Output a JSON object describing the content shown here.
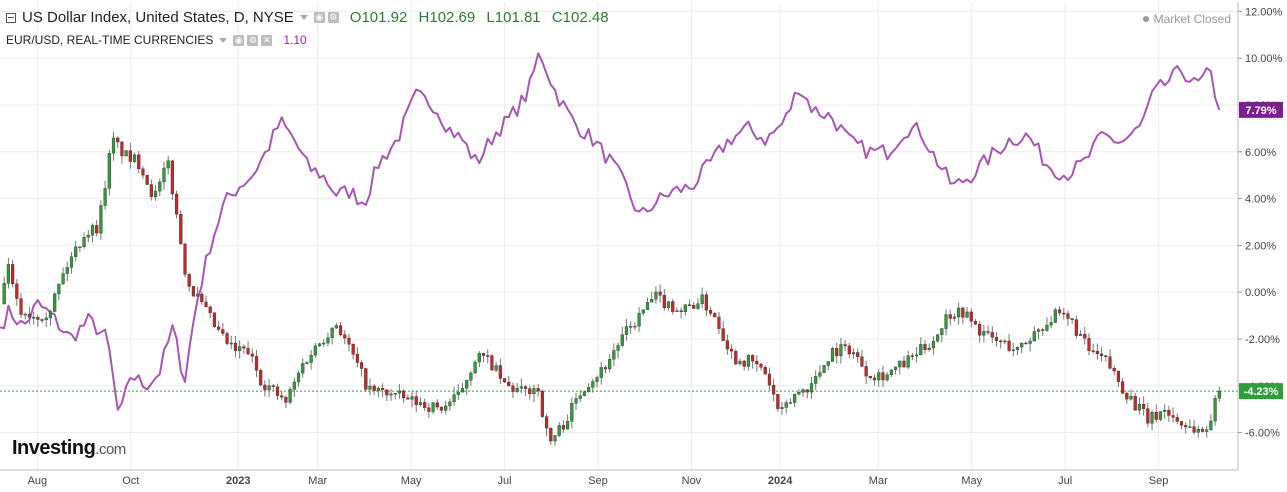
{
  "legend": {
    "primary_title": "US Dollar Index, United States, D, NYSE",
    "open_label": "O",
    "open": "101.92",
    "high_label": "H",
    "high": "102.69",
    "low_label": "L",
    "low": "101.81",
    "close_label": "C",
    "close": "102.48",
    "secondary_title": "EUR/USD, REAL-TIME CURRENCIES",
    "secondary_value": "1.10"
  },
  "market_status": "Market Closed",
  "logo": {
    "main": "Investing",
    "suffix": ".com"
  },
  "colors": {
    "up": "#2e9e3a",
    "down": "#c62828",
    "wick": "#777777",
    "compare_line": "#a855b5",
    "current_price_line": "#2e9e3a",
    "grid": "#ededed",
    "axis_text": "#444444"
  },
  "chart_data": {
    "type": "line",
    "title": "",
    "y_axis": {
      "unit": "%",
      "ticks": [
        "12.00%",
        "10.00%",
        "8.00%",
        "6.00%",
        "4.00%",
        "2.00%",
        "0.00%",
        "-2.00%",
        "-4.00%",
        "-6.00%"
      ],
      "tick_values": [
        12,
        10,
        8,
        6,
        4,
        2,
        0,
        -2,
        -4,
        -6
      ],
      "range": [
        -7.6,
        12.4
      ],
      "grid": true
    },
    "x_axis": {
      "labels": [
        "Aug",
        "Oct",
        "2023",
        "Mar",
        "May",
        "Jul",
        "Sep",
        "Nov",
        "2024",
        "Mar",
        "May",
        "Jul",
        "Sep"
      ],
      "label_positions": [
        0.8,
        2.8,
        5.1,
        6.8,
        8.8,
        10.8,
        12.8,
        14.8,
        16.7,
        18.8,
        20.8,
        22.8,
        24.8
      ],
      "bold_labels": [
        "2023",
        "2024"
      ],
      "range": [
        0,
        26.5
      ],
      "unit": "months since Jul 2022"
    },
    "current_values": {
      "candles": "-4.23%",
      "compare": "7.79%"
    },
    "candle_series": {
      "anchors": [
        [
          0.0,
          -0.5
        ],
        [
          0.15,
          1.2
        ],
        [
          0.4,
          -0.8
        ],
        [
          0.75,
          -1.0
        ],
        [
          1.05,
          -0.8
        ],
        [
          1.4,
          1.0
        ],
        [
          1.8,
          2.5
        ],
        [
          2.1,
          2.8
        ],
        [
          2.4,
          6.5
        ],
        [
          2.7,
          5.8
        ],
        [
          3.0,
          5.5
        ],
        [
          3.3,
          4.0
        ],
        [
          3.6,
          5.5
        ],
        [
          4.0,
          0.5
        ],
        [
          4.3,
          -0.5
        ],
        [
          4.7,
          -1.8
        ],
        [
          5.0,
          -2.5
        ],
        [
          5.3,
          -2.5
        ],
        [
          5.6,
          -3.8
        ],
        [
          5.9,
          -4.3
        ],
        [
          6.1,
          -4.8
        ],
        [
          6.5,
          -3.0
        ],
        [
          6.9,
          -2.0
        ],
        [
          7.2,
          -1.3
        ],
        [
          7.5,
          -2.5
        ],
        [
          7.9,
          -4.2
        ],
        [
          8.3,
          -4.3
        ],
        [
          8.7,
          -4.6
        ],
        [
          9.1,
          -4.8
        ],
        [
          9.4,
          -5.0
        ],
        [
          9.8,
          -4.5
        ],
        [
          10.2,
          -2.7
        ],
        [
          10.5,
          -3.0
        ],
        [
          10.8,
          -4.0
        ],
        [
          11.2,
          -4.3
        ],
        [
          11.5,
          -4.0
        ],
        [
          11.75,
          -6.5
        ],
        [
          12.1,
          -5.5
        ],
        [
          12.5,
          -4.0
        ],
        [
          12.9,
          -3.3
        ],
        [
          13.3,
          -2.0
        ],
        [
          13.7,
          -1.0
        ],
        [
          14.0,
          -0.2
        ],
        [
          14.3,
          -0.5
        ],
        [
          14.6,
          -0.8
        ],
        [
          15.0,
          -0.3
        ],
        [
          15.3,
          -1.0
        ],
        [
          15.7,
          -2.8
        ],
        [
          16.1,
          -3.0
        ],
        [
          16.4,
          -3.5
        ],
        [
          16.7,
          -5.3
        ],
        [
          17.0,
          -4.4
        ],
        [
          17.4,
          -3.9
        ],
        [
          17.8,
          -2.5
        ],
        [
          18.2,
          -2.4
        ],
        [
          18.6,
          -3.5
        ],
        [
          19.0,
          -3.5
        ],
        [
          19.4,
          -3.0
        ],
        [
          19.7,
          -2.5
        ],
        [
          20.0,
          -2.0
        ],
        [
          20.3,
          -0.9
        ],
        [
          20.6,
          -0.8
        ],
        [
          20.9,
          -1.5
        ],
        [
          21.2,
          -2.0
        ],
        [
          21.5,
          -2.2
        ],
        [
          21.8,
          -2.5
        ],
        [
          22.2,
          -1.6
        ],
        [
          22.6,
          -1.0
        ],
        [
          22.95,
          -1.3
        ],
        [
          23.3,
          -2.5
        ],
        [
          23.7,
          -3.0
        ],
        [
          24.0,
          -4.0
        ],
        [
          24.3,
          -4.8
        ],
        [
          24.6,
          -5.5
        ],
        [
          24.9,
          -5.0
        ],
        [
          25.2,
          -5.5
        ],
        [
          25.5,
          -5.8
        ],
        [
          25.8,
          -6.0
        ],
        [
          26.1,
          -4.23
        ]
      ]
    },
    "compare_series": {
      "name": "EUR/USD",
      "anchors": [
        [
          0.0,
          -1.5
        ],
        [
          0.2,
          -0.8
        ],
        [
          0.5,
          -1.5
        ],
        [
          0.8,
          -0.5
        ],
        [
          1.1,
          -1.0
        ],
        [
          1.5,
          -2.0
        ],
        [
          1.9,
          -1.2
        ],
        [
          2.3,
          -2.0
        ],
        [
          2.55,
          -5.5
        ],
        [
          2.8,
          -3.5
        ],
        [
          3.1,
          -4.0
        ],
        [
          3.4,
          -3.5
        ],
        [
          3.7,
          -1.5
        ],
        [
          3.95,
          -3.8
        ],
        [
          4.2,
          -0.5
        ],
        [
          4.5,
          2.0
        ],
        [
          4.8,
          3.8
        ],
        [
          5.1,
          4.5
        ],
        [
          5.4,
          5.0
        ],
        [
          5.7,
          6.0
        ],
        [
          6.0,
          7.3
        ],
        [
          6.3,
          6.5
        ],
        [
          6.6,
          5.3
        ],
        [
          6.9,
          5.0
        ],
        [
          7.2,
          4.2
        ],
        [
          7.5,
          4.3
        ],
        [
          7.8,
          3.8
        ],
        [
          8.1,
          5.5
        ],
        [
          8.5,
          6.5
        ],
        [
          8.9,
          8.4
        ],
        [
          9.3,
          8.0
        ],
        [
          9.6,
          7.0
        ],
        [
          9.9,
          6.5
        ],
        [
          10.2,
          5.5
        ],
        [
          10.6,
          6.8
        ],
        [
          10.9,
          7.4
        ],
        [
          11.3,
          8.5
        ],
        [
          11.55,
          10.3
        ],
        [
          11.9,
          8.5
        ],
        [
          12.3,
          7.2
        ],
        [
          12.7,
          6.5
        ],
        [
          13.1,
          5.5
        ],
        [
          13.4,
          4.5
        ],
        [
          13.7,
          3.2
        ],
        [
          14.0,
          3.8
        ],
        [
          14.4,
          4.3
        ],
        [
          14.8,
          4.5
        ],
        [
          15.2,
          5.5
        ],
        [
          15.6,
          6.5
        ],
        [
          16.0,
          7.0
        ],
        [
          16.4,
          6.5
        ],
        [
          16.8,
          7.3
        ],
        [
          17.1,
          8.8
        ],
        [
          17.4,
          7.8
        ],
        [
          17.8,
          7.5
        ],
        [
          18.2,
          6.4
        ],
        [
          18.6,
          6.0
        ],
        [
          19.0,
          6.0
        ],
        [
          19.4,
          7.0
        ],
        [
          19.7,
          6.9
        ],
        [
          20.0,
          5.8
        ],
        [
          20.4,
          4.5
        ],
        [
          20.8,
          5.0
        ],
        [
          21.2,
          5.8
        ],
        [
          21.6,
          6.5
        ],
        [
          22.0,
          6.7
        ],
        [
          22.4,
          5.5
        ],
        [
          22.8,
          5.0
        ],
        [
          23.2,
          5.5
        ],
        [
          23.6,
          6.7
        ],
        [
          24.0,
          6.4
        ],
        [
          24.4,
          7.0
        ],
        [
          24.7,
          8.5
        ],
        [
          25.0,
          9.0
        ],
        [
          25.3,
          9.5
        ],
        [
          25.6,
          8.8
        ],
        [
          25.9,
          9.4
        ],
        [
          26.1,
          7.79
        ]
      ]
    }
  }
}
